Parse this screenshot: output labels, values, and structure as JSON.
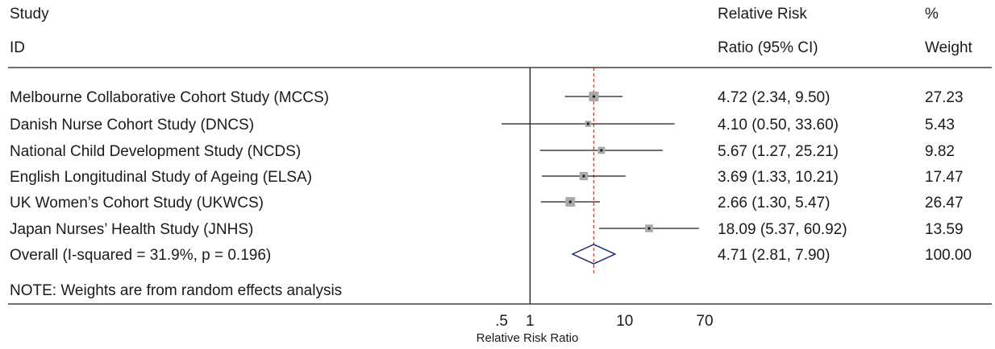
{
  "header": {
    "study_line1": "Study",
    "study_line2": "ID",
    "rr_line1": "Relative Risk",
    "rr_line2": "Ratio (95% CI)",
    "weight_line1": "%",
    "weight_line2": "Weight"
  },
  "note": "NOTE: Weights are from random effects analysis",
  "chart_data": {
    "type": "forest",
    "xlabel": "Relative Risk Ratio",
    "scale": "log",
    "xlim": [
      0.5,
      70
    ],
    "ticks": [
      {
        "value": 0.5,
        "label": ".5"
      },
      {
        "value": 1,
        "label": "1"
      },
      {
        "value": 10,
        "label": "10"
      },
      {
        "value": 70,
        "label": "70"
      }
    ],
    "null_line": 1,
    "overall_line": 4.71,
    "studies": [
      {
        "name": "Melbourne Collaborative Cohort Study (MCCS)",
        "rr": 4.72,
        "lo": 2.34,
        "hi": 9.5,
        "ci_text": "4.72 (2.34, 9.50)",
        "weight": 27.23,
        "weight_text": "27.23"
      },
      {
        "name": "Danish Nurse Cohort Study (DNCS)",
        "rr": 4.1,
        "lo": 0.5,
        "hi": 33.6,
        "ci_text": "4.10 (0.50, 33.60)",
        "weight": 5.43,
        "weight_text": "5.43"
      },
      {
        "name": "National Child Development Study (NCDS)",
        "rr": 5.67,
        "lo": 1.27,
        "hi": 25.21,
        "ci_text": "5.67 (1.27, 25.21)",
        "weight": 9.82,
        "weight_text": "9.82"
      },
      {
        "name": "English Longitudinal Study of Ageing (ELSA)",
        "rr": 3.69,
        "lo": 1.33,
        "hi": 10.21,
        "ci_text": "3.69 (1.33, 10.21)",
        "weight": 17.47,
        "weight_text": "17.47"
      },
      {
        "name": "UK Women’s Cohort Study (UKWCS)",
        "rr": 2.66,
        "lo": 1.3,
        "hi": 5.47,
        "ci_text": "2.66 (1.30, 5.47)",
        "weight": 26.47,
        "weight_text": "26.47"
      },
      {
        "name": "Japan Nurses’ Health Study (JNHS)",
        "rr": 18.09,
        "lo": 5.37,
        "hi": 60.92,
        "ci_text": "18.09 (5.37, 60.92)",
        "weight": 13.59,
        "weight_text": "13.59"
      }
    ],
    "overall": {
      "name": "Overall  (I-squared = 31.9%, p = 0.196)",
      "rr": 4.71,
      "lo": 2.81,
      "hi": 7.9,
      "ci_text": "4.71 (2.81, 7.90)",
      "weight_text": "100.00"
    },
    "colors": {
      "diamond": "#1f2a6b",
      "overall_line": "#c0392b",
      "box": "#a9a9a9",
      "line": "#1a1a1a"
    }
  }
}
